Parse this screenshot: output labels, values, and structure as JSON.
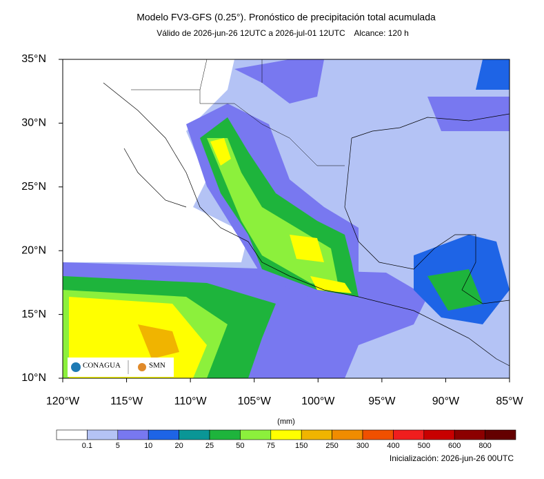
{
  "map": {
    "title": "Modelo FV3-GFS (0.25°). Pronóstico de precipitación total acumulada",
    "subtitle": "Válido de 2026-jun-26 12UTC a 2026-jul-01 12UTC    Alcance: 120 h",
    "lonlim": [
      -120,
      -85
    ],
    "latlim": [
      10,
      35
    ],
    "lonticks": [
      {
        "value": -120,
        "label": "120°W"
      },
      {
        "value": -115,
        "label": "115°W"
      },
      {
        "value": -110,
        "label": "110°W"
      },
      {
        "value": -105,
        "label": "105°W"
      },
      {
        "value": -100,
        "label": "100°W"
      },
      {
        "value": -95,
        "label": "95°W"
      },
      {
        "value": -90,
        "label": "90°W"
      },
      {
        "value": -85,
        "label": "85°W"
      }
    ],
    "latticks": [
      {
        "value": 10,
        "label": "10°N"
      },
      {
        "value": 15,
        "label": "15°N"
      },
      {
        "value": 20,
        "label": "20°N"
      },
      {
        "value": 25,
        "label": "25°N"
      },
      {
        "value": 30,
        "label": "30°N"
      },
      {
        "value": 35,
        "label": "35°N"
      }
    ]
  },
  "colorbar": {
    "unit": "(mm)",
    "levels": [
      {
        "value": 0.1,
        "label": "0.1"
      },
      5,
      10,
      20,
      25,
      50,
      75,
      150,
      250,
      300,
      400,
      500,
      600,
      800
    ],
    "colors": [
      "#ffffff",
      "#b4c3f5",
      "#7878f0",
      "#1e64e6",
      "#0a9696",
      "#1eb43c",
      "#8cf03c",
      "#ffff00",
      "#f0b400",
      "#f08c00",
      "#f05000",
      "#f01e1e",
      "#c80000",
      "#8c0000",
      "#640000"
    ]
  },
  "footer": "Inicialización: 2026-jun-26 00UTC",
  "logos": {
    "left": "CONAGUA",
    "right": "SMN"
  }
}
